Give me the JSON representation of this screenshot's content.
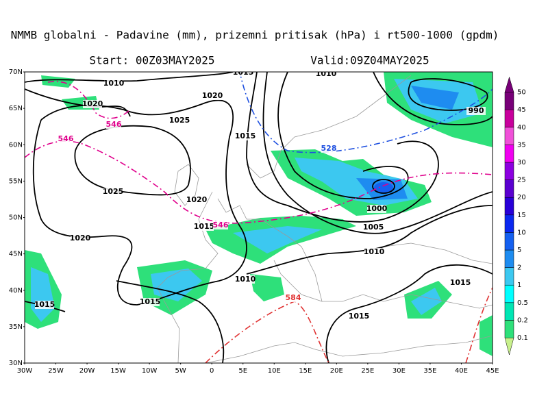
{
  "header": {
    "title": "NMMB globalni - Padavine (mm), prizemni pritisak (hPa) i rt500-1000 (gpdm)",
    "start": "Start: 00Z03MAY2025",
    "valid": "Valid:09Z04MAY2025"
  },
  "map": {
    "lat_labels": [
      "70N",
      "65N",
      "60N",
      "55N",
      "50N",
      "45N",
      "40N",
      "35N",
      "30N"
    ],
    "lon_labels": [
      "30W",
      "25W",
      "20W",
      "15W",
      "10W",
      "5W",
      "0",
      "5E",
      "10E",
      "15E",
      "20E",
      "25E",
      "30E",
      "35E",
      "40E",
      "45E"
    ],
    "pressure_labels": [
      "1010",
      "1020",
      "1020",
      "1025",
      "1015",
      "1025",
      "1020",
      "1015",
      "1020",
      "1010",
      "1015",
      "1015",
      "1015",
      "1010",
      "1005",
      "1000",
      "990",
      "1015",
      "1010",
      "1015"
    ],
    "thickness_labels": [
      "546",
      "546",
      "546",
      "528",
      "584"
    ]
  },
  "colorbar": {
    "levels": [
      0.1,
      0.2,
      0.5,
      1,
      2,
      5,
      10,
      15,
      20,
      25,
      30,
      35,
      40,
      45,
      50
    ],
    "colors": [
      "#c8f08c",
      "#2ee07a",
      "#00e6b4",
      "#00ffff",
      "#3cc8f0",
      "#1e8cf0",
      "#1460f0",
      "#0a28f0",
      "#2800d8",
      "#5a00d0",
      "#8c00e0",
      "#f000f0",
      "#f050d8",
      "#c8009c",
      "#780078"
    ]
  }
}
